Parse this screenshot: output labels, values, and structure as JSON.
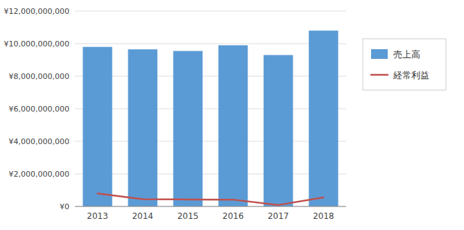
{
  "chart_data": {
    "type": "bar",
    "categories": [
      "2013",
      "2014",
      "2015",
      "2016",
      "2017",
      "2018"
    ],
    "series": [
      {
        "name": "売上高",
        "type": "bar",
        "color": "#5B9BD5",
        "values": [
          9800000000,
          9650000000,
          9550000000,
          9900000000,
          9300000000,
          10800000000
        ]
      },
      {
        "name": "経常利益",
        "type": "line",
        "color": "#C0504D",
        "values": [
          800000000,
          450000000,
          430000000,
          420000000,
          90000000,
          550000000
        ]
      }
    ],
    "ylim": [
      0,
      12000000000
    ],
    "yticks": [
      {
        "value": 0,
        "label": "¥0"
      },
      {
        "value": 2000000000,
        "label": "¥2,000,000,000"
      },
      {
        "value": 4000000000,
        "label": "¥4,000,000,000"
      },
      {
        "value": 6000000000,
        "label": "¥6,000,000,000"
      },
      {
        "value": 8000000000,
        "label": "¥8,000,000,000"
      },
      {
        "value": 10000000000,
        "label": "¥10,000,000,000"
      },
      {
        "value": 12000000000,
        "label": "¥12,000,000,000"
      }
    ],
    "grid": true,
    "legend": "right"
  }
}
